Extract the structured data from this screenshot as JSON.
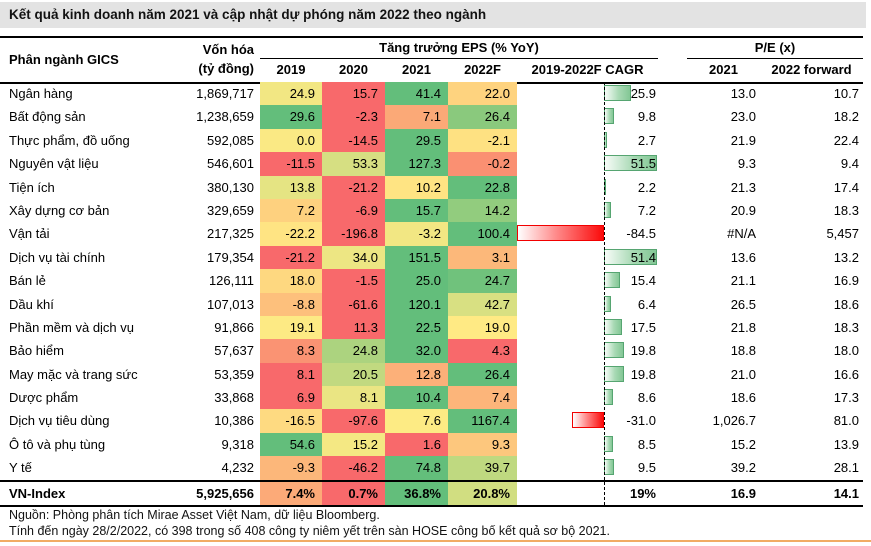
{
  "chart_data": {
    "type": "table",
    "title": "Kết quả kinh doanh năm 2021 và cập nhật dự phóng năm 2022 theo ngành",
    "header": {
      "sector": "Phân ngành GICS",
      "marketcap_line1": "Vốn hóa",
      "marketcap_line2": "(tỷ đồng)",
      "eps_group": "Tăng trưởng EPS (% YoY)",
      "pe_group": "P/E (x)",
      "year_cols": [
        "2019",
        "2020",
        "2021",
        "2022F"
      ],
      "cagr_col": "2019-2022F CAGR",
      "pe_cols": [
        "2021",
        "2022 forward"
      ]
    },
    "rows": [
      {
        "name": "Ngân hàng",
        "cap": "1,869,717",
        "eps": [
          24.9,
          15.7,
          41.4,
          22.0
        ],
        "cagr": 25.9,
        "pe": [
          "13.0",
          "10.7"
        ]
      },
      {
        "name": "Bất động sản",
        "cap": "1,238,659",
        "eps": [
          29.6,
          -2.3,
          7.1,
          26.4
        ],
        "cagr": 9.8,
        "pe": [
          "23.0",
          "18.2"
        ]
      },
      {
        "name": "Thực phẩm, đồ uống",
        "cap": "592,085",
        "eps": [
          0.0,
          -14.5,
          29.5,
          -2.1
        ],
        "cagr": 2.7,
        "pe": [
          "21.9",
          "22.4"
        ]
      },
      {
        "name": "Nguyên vật liệu",
        "cap": "546,601",
        "eps": [
          -11.5,
          53.3,
          127.3,
          -0.2
        ],
        "cagr": 51.5,
        "pe": [
          "9.3",
          "9.4"
        ]
      },
      {
        "name": "Tiện ích",
        "cap": "380,130",
        "eps": [
          13.8,
          -21.2,
          10.2,
          22.8
        ],
        "cagr": 2.2,
        "pe": [
          "21.3",
          "17.4"
        ]
      },
      {
        "name": "Xây dựng cơ bản",
        "cap": "329,659",
        "eps": [
          7.2,
          -6.9,
          15.7,
          14.2
        ],
        "cagr": 7.2,
        "pe": [
          "20.9",
          "18.3"
        ]
      },
      {
        "name": "Vận tải",
        "cap": "217,325",
        "eps": [
          -22.2,
          -196.8,
          -3.2,
          100.4
        ],
        "cagr": -84.5,
        "pe": [
          "#N/A",
          "5,457"
        ]
      },
      {
        "name": "Dịch vụ tài chính",
        "cap": "179,354",
        "eps": [
          -21.2,
          34.0,
          151.5,
          3.1
        ],
        "cagr": 51.4,
        "pe": [
          "13.6",
          "13.2"
        ]
      },
      {
        "name": "Bán lẻ",
        "cap": "126,111",
        "eps": [
          18.0,
          -1.5,
          25.0,
          24.7
        ],
        "cagr": 15.4,
        "pe": [
          "21.1",
          "16.9"
        ]
      },
      {
        "name": "Dầu khí",
        "cap": "107,013",
        "eps": [
          -8.8,
          -61.6,
          120.1,
          42.7
        ],
        "cagr": 6.4,
        "pe": [
          "26.5",
          "18.6"
        ]
      },
      {
        "name": "Phần mềm và dịch vụ",
        "cap": "91,866",
        "eps": [
          19.1,
          11.3,
          22.5,
          19.0
        ],
        "cagr": 17.5,
        "pe": [
          "21.8",
          "18.3"
        ]
      },
      {
        "name": "Bảo hiểm",
        "cap": "57,637",
        "eps": [
          8.3,
          24.8,
          32.0,
          4.3
        ],
        "cagr": 19.8,
        "pe": [
          "18.8",
          "18.0"
        ]
      },
      {
        "name": "May mặc và trang sức",
        "cap": "53,359",
        "eps": [
          8.1,
          20.5,
          12.8,
          26.4
        ],
        "cagr": 19.8,
        "pe": [
          "21.0",
          "16.6"
        ]
      },
      {
        "name": "Dược phẩm",
        "cap": "33,868",
        "eps": [
          6.9,
          8.1,
          10.4,
          7.4
        ],
        "cagr": 8.6,
        "pe": [
          "18.6",
          "17.3"
        ]
      },
      {
        "name": "Dịch vụ tiêu dùng",
        "cap": "10,386",
        "eps": [
          -16.5,
          -97.6,
          7.6,
          1167.4
        ],
        "cagr": -31.0,
        "pe": [
          "1,026.7",
          "81.0"
        ]
      },
      {
        "name": "Ô tô và phụ tùng",
        "cap": "9,318",
        "eps": [
          54.6,
          15.2,
          1.6,
          9.3
        ],
        "cagr": 8.5,
        "pe": [
          "15.2",
          "13.9"
        ]
      },
      {
        "name": "Y tế",
        "cap": "4,232",
        "eps": [
          -9.3,
          -46.2,
          74.8,
          39.7
        ],
        "cagr": 9.5,
        "pe": [
          "39.2",
          "28.1"
        ]
      }
    ],
    "summary_row": {
      "name": "VN-Index",
      "cap": "5,925,656",
      "eps_display": [
        "7.4%",
        "0.7%",
        "36.8%",
        "20.8%"
      ],
      "eps_values": [
        7.4,
        0.7,
        36.8,
        20.8
      ],
      "cagr_display": "19%",
      "pe": [
        "16.9",
        "14.1"
      ]
    },
    "footer": {
      "line1": "Nguồn: Phòng phân tích Mirae Asset Việt Nam, dữ liệu Bloomberg.",
      "line2": "Tính đến ngày 28/2/2022, có 398 trong số 408 công ty niêm yết trên sàn HOSE công bố kết quả sơ bộ 2021."
    },
    "heatmap": {
      "scale_min": "#F8696B",
      "scale_mid": "#FFEB84",
      "scale_max": "#63BE7B"
    },
    "databar": {
      "axis_min": -84.5,
      "axis_max": 51.5,
      "pos_border": "#56A571",
      "neg_border": "#F20000"
    },
    "colors": {
      "title_bg": "#E3E3E3",
      "bottom_rule": "#F1AC64"
    }
  }
}
